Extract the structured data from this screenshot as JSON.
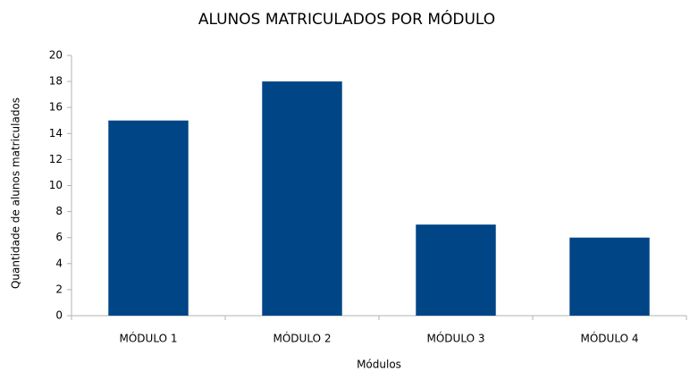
{
  "chart_data": {
    "type": "bar",
    "title": "ALUNOS MATRICULADOS POR MÓDULO",
    "x_label": "Módulos",
    "y_label": "Quantidade de alunos matriculados",
    "categories": [
      "MÓDULO 1",
      "MÓDULO 2",
      "MÓDULO 3",
      "MÓDULO 4"
    ],
    "values": [
      15,
      18,
      7,
      6
    ],
    "color": "#004586",
    "ylim": [
      0,
      20
    ],
    "yticks": [
      0,
      2,
      4,
      6,
      8,
      10,
      12,
      14,
      16,
      18,
      20
    ],
    "grid": false
  }
}
